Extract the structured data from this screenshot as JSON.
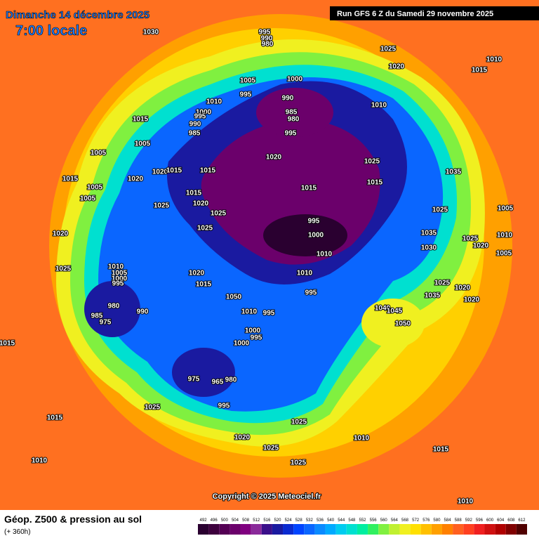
{
  "header": {
    "date": "Dimanche 14 décembre 2025",
    "time": "7:00 locale",
    "run": "Run GFS 6 Z du Samedi 29 novembre 2025",
    "copyright": "Copyright © 2025 Meteociel.fr"
  },
  "footer": {
    "title": "Géop. Z500 & pression au sol",
    "lead": "(+ 360h)"
  },
  "scale": {
    "values": [
      492,
      496,
      500,
      504,
      508,
      512,
      516,
      520,
      524,
      528,
      532,
      536,
      540,
      544,
      548,
      552,
      556,
      560,
      564,
      568,
      572,
      576,
      580,
      584,
      588,
      592,
      596,
      600,
      604,
      608,
      612
    ],
    "colors": [
      "#2a0030",
      "#3d003d",
      "#540054",
      "#6b006b",
      "#800080",
      "#8a2a9a",
      "#3a0f8a",
      "#1a1aa0",
      "#0a2ad0",
      "#0044ff",
      "#0a66ff",
      "#0a8aff",
      "#00aaff",
      "#00ccf0",
      "#00e0d0",
      "#00eea0",
      "#30f060",
      "#80f040",
      "#c0f030",
      "#f0f020",
      "#ffe000",
      "#ffc000",
      "#ffa000",
      "#ff8000",
      "#ff6020",
      "#ff4020",
      "#f02020",
      "#d01010",
      "#b00000",
      "#800000",
      "#500000"
    ]
  },
  "pressure_labels": [
    1030,
    1025,
    1020,
    1010,
    1015,
    1005,
    1000,
    995,
    990,
    985,
    980,
    995,
    1010,
    1000,
    995,
    990,
    985,
    1010,
    1015,
    1005,
    1005,
    1020,
    1025,
    1035,
    1015,
    1015,
    1015,
    1005,
    1005,
    1020,
    1020,
    1015,
    1015,
    1015,
    1020,
    1025,
    1025,
    1025,
    1025,
    1005,
    995,
    1000,
    1035,
    1030,
    1025,
    1020,
    1010,
    1005,
    1020,
    1010,
    1010,
    1025,
    1010,
    1005,
    1000,
    995,
    1020,
    1015,
    1025,
    1020,
    1035,
    1020,
    995,
    980,
    990,
    985,
    975,
    1040,
    1045,
    1050,
    1010,
    995,
    1000,
    995,
    1000,
    1015,
    975,
    965,
    980,
    995,
    1025,
    1015,
    1025,
    1020,
    1010,
    1025,
    1015,
    1010,
    1025,
    1010,
    995,
    990,
    980,
    1050
  ]
}
